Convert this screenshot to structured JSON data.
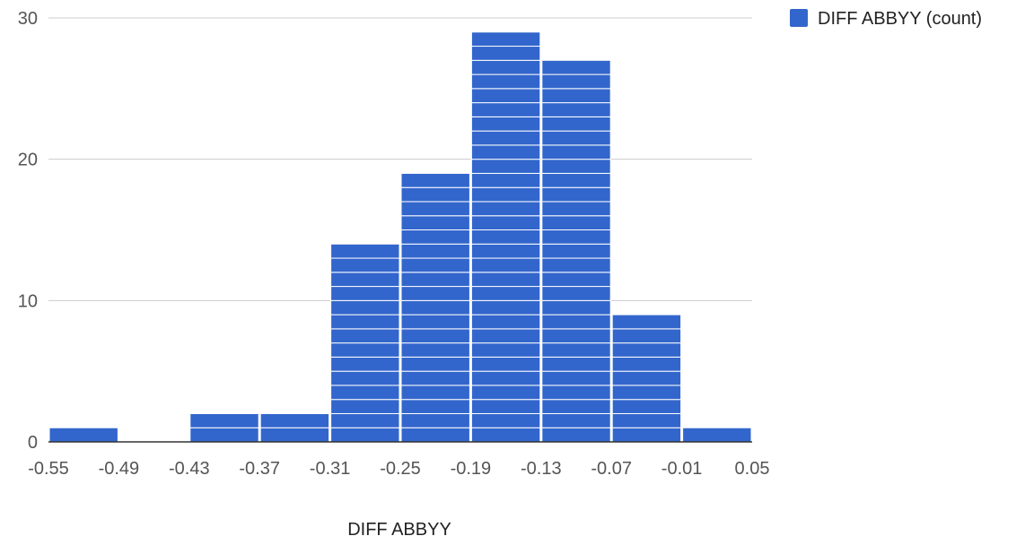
{
  "chart_data": {
    "type": "bar",
    "subtype": "histogram",
    "title": "",
    "xlabel": "DIFF ABBYY",
    "ylabel": "",
    "bin_edges": [
      -0.55,
      -0.49,
      -0.43,
      -0.37,
      -0.31,
      -0.25,
      -0.19,
      -0.13,
      -0.07,
      -0.01,
      0.05
    ],
    "x_tick_labels": [
      "-0.55",
      "-0.49",
      "-0.43",
      "-0.37",
      "-0.31",
      "-0.25",
      "-0.19",
      "-0.13",
      "-0.07",
      "-0.01",
      "0.05"
    ],
    "values": [
      1,
      0,
      2,
      2,
      14,
      19,
      29,
      27,
      9,
      1
    ],
    "ylim": [
      0,
      30
    ],
    "y_ticks": [
      0,
      10,
      20,
      30
    ],
    "y_tick_labels": [
      "0",
      "10",
      "20",
      "30"
    ],
    "series": [
      {
        "name": "DIFF ABBYY (count)",
        "color": "#3366cc"
      }
    ],
    "bar_style": "stacked-unit-segments",
    "grid": true,
    "legend_position": "top-right"
  }
}
